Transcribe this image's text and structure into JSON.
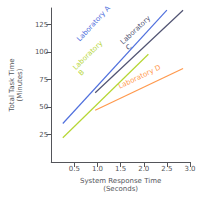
{
  "chart_data": {
    "type": "line",
    "xlabel": "System Response Time\n(Seconds)",
    "ylabel": "Total Task Time\n(Minutes)",
    "xlim": [
      0,
      3.0
    ],
    "ylim": [
      0,
      140
    ],
    "xticks": [
      0.5,
      {
        "value": 1.0,
        "label": "1.0"
      },
      1.5,
      {
        "value": 2.0,
        "label": "2.0"
      },
      2.5,
      {
        "value": 3.0,
        "label": "3.0"
      }
    ],
    "yticks": [
      25,
      50,
      75,
      100,
      125
    ],
    "grid": false,
    "series": [
      {
        "name": "Laboratory A",
        "x": [
          0.25,
          2.5
        ],
        "values": [
          35,
          138
        ],
        "label_x": 0.65,
        "label_y": 108
      },
      {
        "name": "Laboratory\nB",
        "x": [
          0.25,
          2.1
        ],
        "values": [
          22,
          98
        ],
        "label_x": 0.68,
        "label_y": 77
      },
      {
        "name": "Laboratory\nC",
        "x": [
          0.95,
          2.85
        ],
        "values": [
          63,
          138
        ],
        "label_x": 1.7,
        "label_y": 100
      },
      {
        "name": "Laboratory D",
        "x": [
          0.95,
          2.85
        ],
        "values": [
          47,
          85
        ],
        "label_x": 1.5,
        "label_y": 65
      }
    ]
  }
}
